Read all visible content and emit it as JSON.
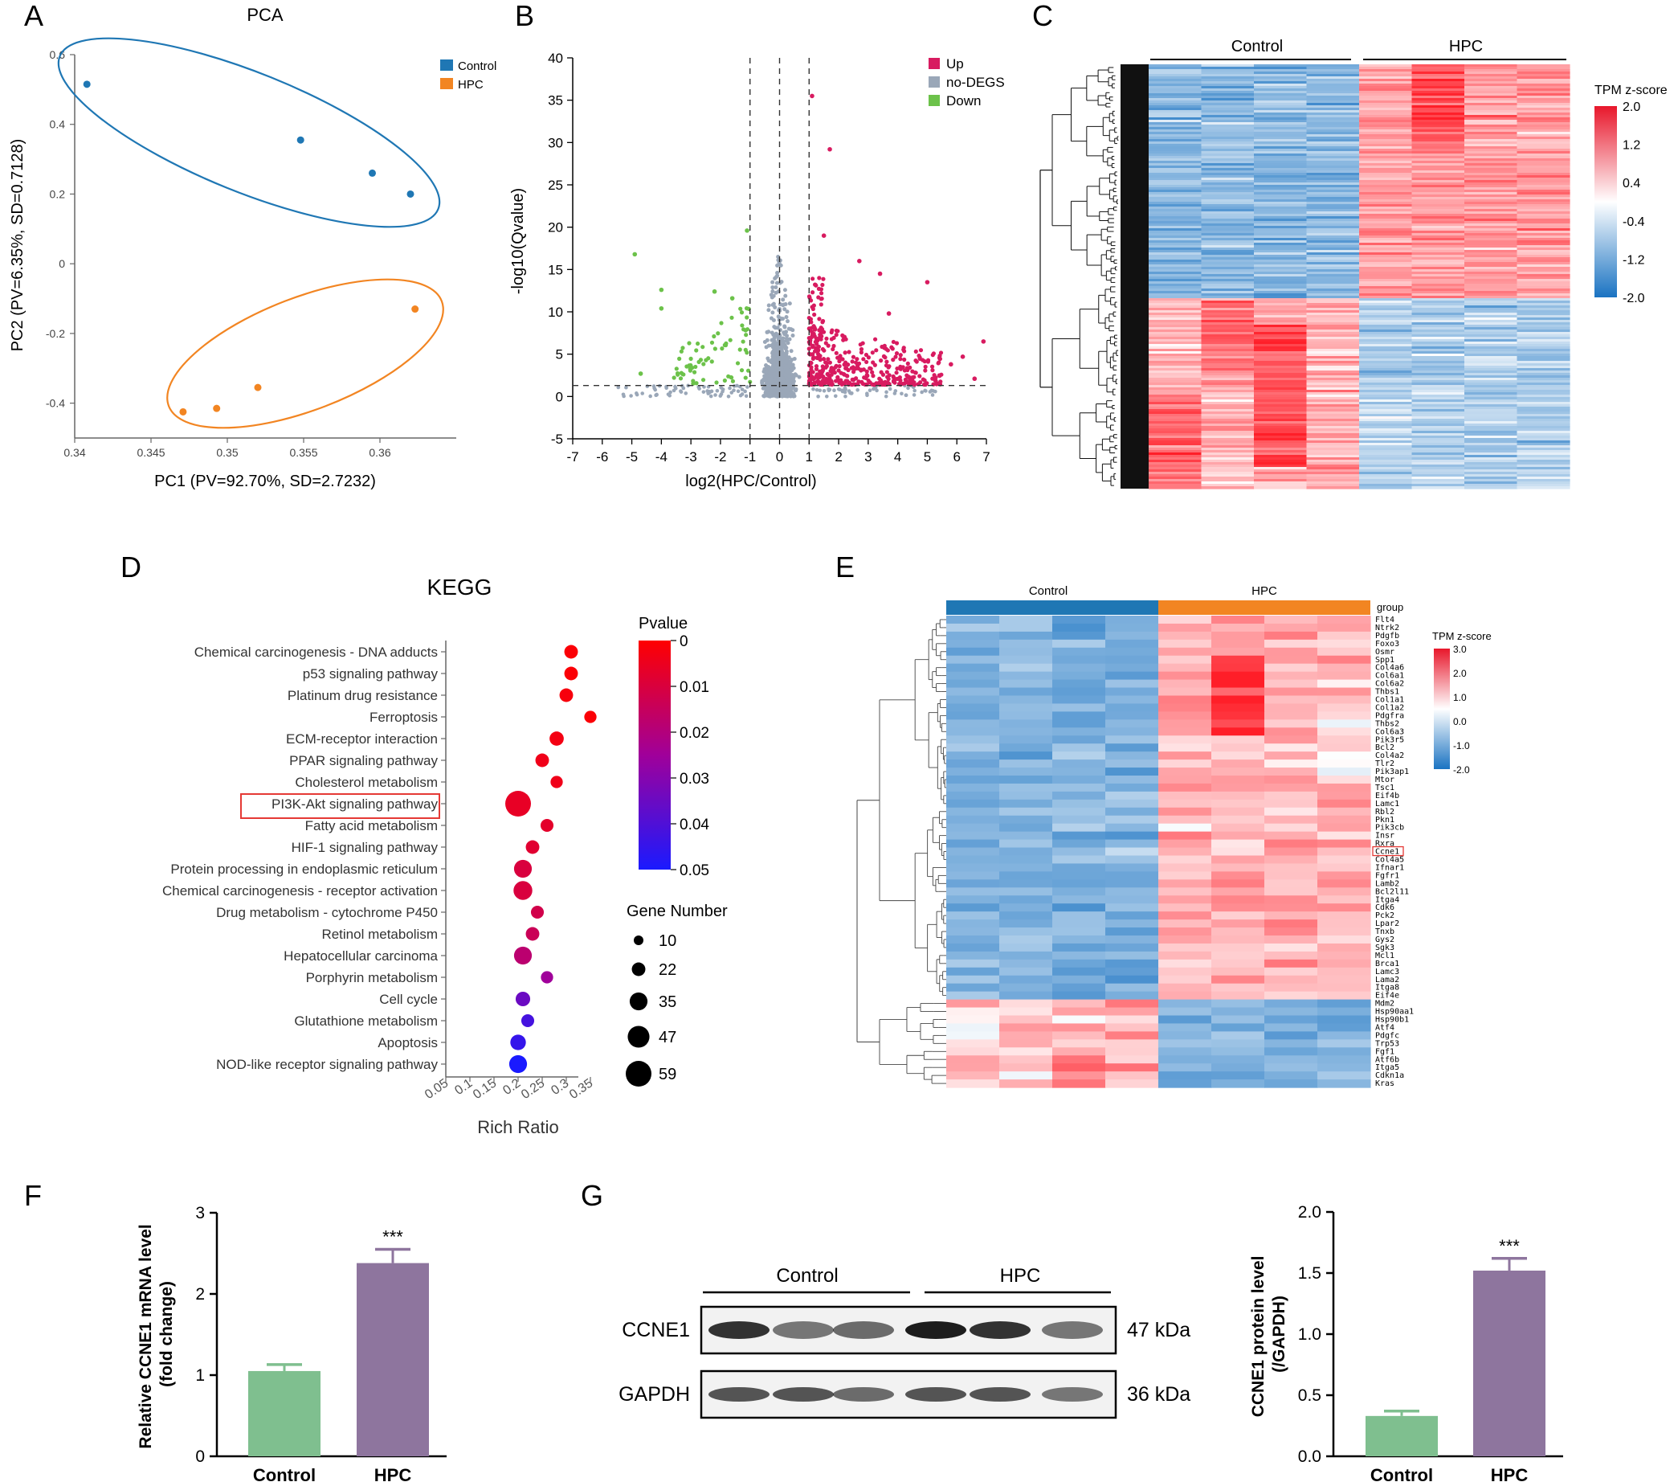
{
  "colors": {
    "control_blue": "#1f77b4",
    "hpc_orange": "#f28522",
    "up": "#d81b60",
    "nodeg": "#9aa7b8",
    "down": "#6cc24a",
    "bar_green": "#7fbf8f",
    "bar_purple": "#8e759e",
    "box_red": "#e53935"
  },
  "panels": {
    "A": {
      "letter": "A",
      "chart_data": {
        "type": "scatter",
        "title": "PCA",
        "xlabel": "PC1 (PV=92.70%, SD=2.7232)",
        "ylabel": "PC2 (PV=6.35%, SD=0.7128)",
        "xlim": [
          0.34,
          0.365
        ],
        "ylim": [
          -0.5,
          0.6
        ],
        "xticks": [
          0.34,
          0.345,
          0.35,
          0.355,
          0.36
        ],
        "xtick_labels": [
          "0.34",
          "0.345",
          "0.35",
          "0.355",
          "0.36"
        ],
        "yticks": [
          -0.4,
          -0.2,
          0,
          0.2,
          0.4,
          0.6
        ],
        "ytick_labels": [
          "-0.4",
          "-0.2",
          "0",
          "0.2",
          "0.4",
          "0.6"
        ],
        "legend": [
          "Control",
          "HPC"
        ],
        "series": [
          {
            "name": "Control",
            "points": [
              [
                0.3408,
                0.515
              ],
              [
                0.3548,
                0.355
              ],
              [
                0.3595,
                0.26
              ],
              [
                0.362,
                0.2
              ]
            ]
          },
          {
            "name": "HPC",
            "points": [
              [
                0.3471,
                -0.425
              ],
              [
                0.3493,
                -0.415
              ],
              [
                0.352,
                -0.355
              ],
              [
                0.3623,
                -0.13
              ]
            ]
          }
        ]
      }
    },
    "B": {
      "letter": "B",
      "chart_data": {
        "type": "scatter",
        "title": "",
        "xlabel": "log2(HPC/Control)",
        "ylabel": "-log10(Qvalue)",
        "xlim": [
          -7,
          7
        ],
        "ylim": [
          -5,
          40
        ],
        "xticks": [
          -7,
          -6,
          -5,
          -4,
          -3,
          -2,
          -1,
          0,
          1,
          2,
          3,
          4,
          5,
          6,
          7
        ],
        "yticks": [
          -5,
          0,
          5,
          10,
          15,
          20,
          25,
          30,
          35,
          40
        ],
        "vlines": [
          -1,
          0,
          1
        ],
        "hline": 1.3,
        "legend": [
          "Up",
          "no-DEGS",
          "Down"
        ],
        "highlight_up": [
          [
            1.1,
            35.5
          ],
          [
            1.7,
            29.2
          ],
          [
            1.5,
            19
          ],
          [
            2.7,
            16
          ],
          [
            3.4,
            14.5
          ],
          [
            3.7,
            9.8
          ],
          [
            5,
            13.5
          ],
          [
            6.9,
            6.5
          ],
          [
            6.6,
            2.1
          ],
          [
            6.2,
            4.7
          ],
          [
            5.8,
            3.8
          ]
        ],
        "highlight_down": [
          [
            -4.9,
            16.8
          ],
          [
            -1.1,
            19.6
          ],
          [
            -4,
            12.6
          ],
          [
            -4,
            10.4
          ],
          [
            -1.6,
            11.6
          ],
          [
            -4.7,
            2.7
          ],
          [
            -2.2,
            12.4
          ]
        ]
      }
    },
    "C": {
      "letter": "C",
      "chart_data": {
        "type": "heatmap",
        "groups": [
          "Control",
          "HPC"
        ],
        "colorbar_title": "TPM z-score",
        "colorbar_ticks": [
          "2.0",
          "1.2",
          "0.4",
          "-0.4",
          "-1.2",
          "-2.0"
        ]
      }
    },
    "D": {
      "letter": "D",
      "chart_data": {
        "type": "scatter",
        "title": "KEGG",
        "xlabel": "Rich Ratio",
        "xticks": [
          0.05,
          0.1,
          0.15,
          0.2,
          0.25,
          0.3,
          0.35
        ],
        "xtick_labels": [
          "0.05",
          "0.1",
          "0.15",
          "0.2",
          "0.25",
          "0.3",
          "0.35"
        ],
        "xlim": [
          0.05,
          0.4
        ],
        "pvalue_title": "Pvalue",
        "pvalue_ticks": [
          "0",
          "0.01",
          "0.02",
          "0.03",
          "0.04",
          "0.05"
        ],
        "size_title": "Gene Number",
        "size_legend": [
          10,
          22,
          35,
          47,
          59
        ],
        "boxed_term": "PI3K-Akt signaling pathway",
        "terms": [
          {
            "name": "Chemical carcinogenesis - DNA adducts",
            "ratio": 0.31,
            "p": 0.001,
            "n": 22
          },
          {
            "name": "p53 signaling pathway",
            "ratio": 0.31,
            "p": 0.001,
            "n": 22
          },
          {
            "name": "Platinum drug resistance",
            "ratio": 0.3,
            "p": 0.002,
            "n": 22
          },
          {
            "name": "Ferroptosis",
            "ratio": 0.35,
            "p": 0.001,
            "n": 18
          },
          {
            "name": "ECM-receptor interaction",
            "ratio": 0.28,
            "p": 0.003,
            "n": 24
          },
          {
            "name": "PPAR signaling pathway",
            "ratio": 0.25,
            "p": 0.004,
            "n": 22
          },
          {
            "name": "Cholesterol metabolism",
            "ratio": 0.28,
            "p": 0.004,
            "n": 18
          },
          {
            "name": "PI3K-Akt signaling pathway",
            "ratio": 0.2,
            "p": 0.006,
            "n": 59
          },
          {
            "name": "Fatty acid metabolism",
            "ratio": 0.26,
            "p": 0.007,
            "n": 20
          },
          {
            "name": "HIF-1 signaling pathway",
            "ratio": 0.23,
            "p": 0.008,
            "n": 22
          },
          {
            "name": "Protein processing in endoplasmic reticulum",
            "ratio": 0.21,
            "p": 0.01,
            "n": 35
          },
          {
            "name": "Chemical carcinogenesis - receptor activation",
            "ratio": 0.21,
            "p": 0.01,
            "n": 38
          },
          {
            "name": "Drug metabolism - cytochrome P450",
            "ratio": 0.24,
            "p": 0.012,
            "n": 20
          },
          {
            "name": "Retinol metabolism",
            "ratio": 0.23,
            "p": 0.014,
            "n": 22
          },
          {
            "name": "Hepatocellular carcinoma",
            "ratio": 0.21,
            "p": 0.018,
            "n": 35
          },
          {
            "name": "Porphyrin metabolism",
            "ratio": 0.26,
            "p": 0.025,
            "n": 18
          },
          {
            "name": "Cell cycle",
            "ratio": 0.21,
            "p": 0.035,
            "n": 25
          },
          {
            "name": "Glutathione metabolism",
            "ratio": 0.22,
            "p": 0.042,
            "n": 20
          },
          {
            "name": "Apoptosis",
            "ratio": 0.2,
            "p": 0.045,
            "n": 28
          },
          {
            "name": "NOD-like receptor signaling pathway",
            "ratio": 0.2,
            "p": 0.05,
            "n": 35
          }
        ]
      }
    },
    "E": {
      "letter": "E",
      "chart_data": {
        "type": "heatmap",
        "groups": [
          "Control",
          "HPC"
        ],
        "group_label": "group",
        "colorbar_title": "TPM z-score",
        "colorbar_ticks": [
          "3.0",
          "2.0",
          "1.0",
          "0.0",
          "-1.0",
          "-2.0"
        ],
        "boxed_gene": "Ccne1",
        "genes": [
          "Flt4",
          "Ntrk2",
          "Pdgfb",
          "Foxo3",
          "Osmr",
          "Spp1",
          "Col4a6",
          "Col6a1",
          "Col6a2",
          "Thbs1",
          "Col1a1",
          "Col1a2",
          "Pdgfra",
          "Thbs2",
          "Col6a3",
          "Pik3r5",
          "Bcl2",
          "Col4a2",
          "Tlr2",
          "Pik3ap1",
          "Mtor",
          "Tsc1",
          "Eif4b",
          "Lamc1",
          "Rbl2",
          "Pkn1",
          "Pik3cb",
          "Insr",
          "Rxra",
          "Ccne1",
          "Col4a5",
          "Ifnar1",
          "Fgfr1",
          "Lamb2",
          "Bcl2l11",
          "Itga4",
          "Cdk6",
          "Pck2",
          "Lpar2",
          "Tnxb",
          "Gys2",
          "Sgk3",
          "Mcl1",
          "Brca1",
          "Lamc3",
          "Lama2",
          "Itga8",
          "Eif4e",
          "Mdm2",
          "Hsp90aa1",
          "Hsp90b1",
          "Atf4",
          "Pdgfc",
          "Trp53",
          "Fgf1",
          "Atf6b",
          "Itga5",
          "Cdkn1a",
          "Kras"
        ]
      }
    },
    "F": {
      "letter": "F",
      "chart_data": {
        "type": "bar",
        "categories": [
          "Control",
          "HPC"
        ],
        "values": [
          1.05,
          2.38
        ],
        "errors": [
          0.08,
          0.17
        ],
        "ylabel": "Relative CCNE1 mRNA level (fold change)",
        "ylabel_line1": "Relative CCNE1 mRNA level",
        "ylabel_line2": "(fold change)",
        "ylim": [
          0,
          3
        ],
        "yticks": [
          0,
          1,
          2,
          3
        ],
        "significance": "***"
      }
    },
    "G": {
      "letter": "G",
      "blot": {
        "groups": [
          "Control",
          "HPC"
        ],
        "rows": [
          {
            "label": "CCNE1",
            "size": "47 kDa",
            "intensity": [
              0.85,
              0.55,
              0.6,
              0.95,
              0.85,
              0.55
            ]
          },
          {
            "label": "GAPDH",
            "size": "36 kDa",
            "intensity": [
              0.7,
              0.7,
              0.6,
              0.7,
              0.7,
              0.55
            ]
          }
        ]
      },
      "chart_data": {
        "type": "bar",
        "categories": [
          "Control",
          "HPC"
        ],
        "values": [
          0.33,
          1.52
        ],
        "errors": [
          0.04,
          0.1
        ],
        "ylabel": "CCNE1 protein level (/GAPDH)",
        "ylabel_line1": "CCNE1 protein  level",
        "ylabel_line2": "(/GAPDH)",
        "ylim": [
          0,
          2.0
        ],
        "yticks": [
          0.0,
          0.5,
          1.0,
          1.5,
          2.0
        ],
        "ytick_labels": [
          "0.0",
          "0.5",
          "1.0",
          "1.5",
          "2.0"
        ],
        "significance": "***"
      }
    }
  }
}
